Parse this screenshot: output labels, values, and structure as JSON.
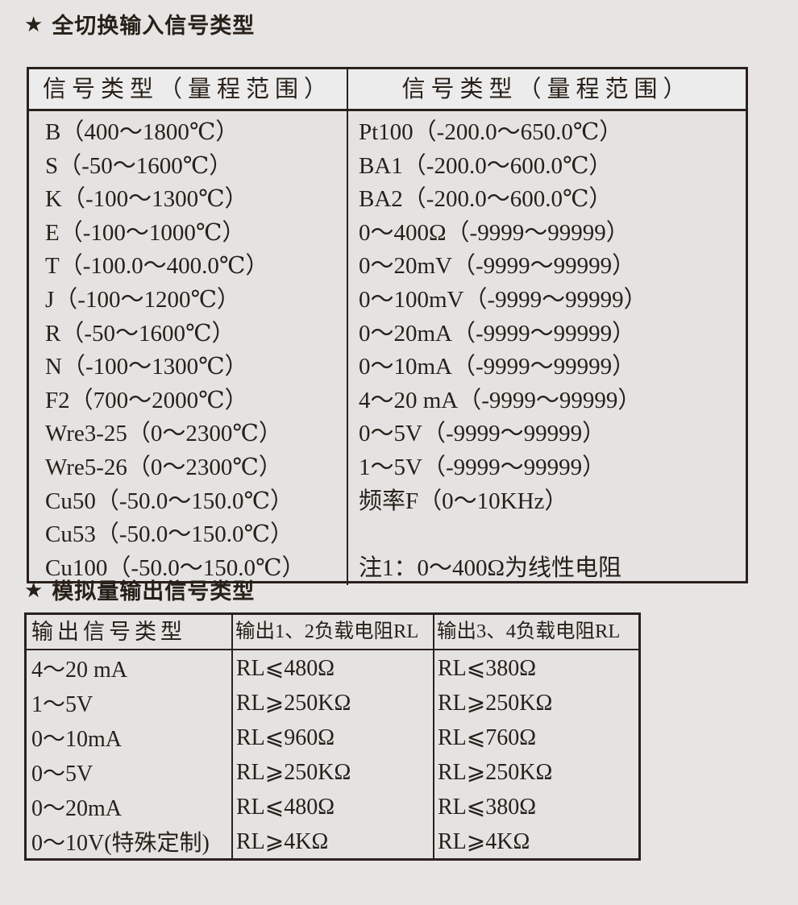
{
  "page": {
    "background_color": "#e7e5e4",
    "text_color": "#272019",
    "border_color": "#2a211d",
    "header_fill_color": "#edecec"
  },
  "section1": {
    "star": "★",
    "title": "全切换输入信号类型",
    "table": {
      "header_left": "信号类型（量程范围）",
      "header_right": "信号类型（量程范围）",
      "left_rows": [
        "B（400～1800℃）",
        "S（-50～1600℃）",
        "K（-100～1300℃）",
        "E（-100～1000℃）",
        "T（-100.0～400.0℃）",
        "J（-100～1200℃）",
        "R（-50～1600℃）",
        "N（-100～1300℃）",
        "F2（700～2000℃）",
        "Wre3-25（0～2300℃）",
        "Wre5-26（0～2300℃）",
        "Cu50（-50.0～150.0℃）",
        "Cu53（-50.0～150.0℃）",
        "Cu100（-50.0～150.0℃）"
      ],
      "right_rows": [
        "Pt100（-200.0～650.0℃）",
        "BA1（-200.0～600.0℃）",
        "BA2（-200.0～600.0℃）",
        "0～400Ω（-9999～99999）",
        "0～20mV（-9999～99999）",
        "0～100mV（-9999～99999）",
        "0～20mA（-9999～99999）",
        "0～10mA（-9999～99999）",
        "4～20 mA（-9999～99999）",
        "0～5V（-9999～99999）",
        "1～5V（-9999～99999）",
        "频率F（0～10KHz）"
      ],
      "note": "注1：0～400Ω为线性电阻"
    }
  },
  "section2": {
    "star": "★",
    "title": "模拟量输出信号类型",
    "table": {
      "headers": [
        "输出信号类型",
        "输出1、2负载电阻RL",
        "输出3、4负载电阻RL"
      ],
      "rows": [
        {
          "type": "4～20 mA",
          "rl12": "RL⩽480Ω",
          "rl34": "RL⩽380Ω"
        },
        {
          "type": "1～5V",
          "rl12": "RL⩾250KΩ",
          "rl34": "RL⩾250KΩ"
        },
        {
          "type": "0～10mA",
          "rl12": "RL⩽960Ω",
          "rl34": "RL⩽760Ω"
        },
        {
          "type": "0～5V",
          "rl12": "RL⩾250KΩ",
          "rl34": "RL⩾250KΩ"
        },
        {
          "type": "0～20mA",
          "rl12": "RL⩽480Ω",
          "rl34": "RL⩽380Ω"
        },
        {
          "type": "0～10V(特殊定制)",
          "rl12": "RL⩾4KΩ",
          "rl34": "RL⩾4KΩ"
        }
      ]
    }
  }
}
